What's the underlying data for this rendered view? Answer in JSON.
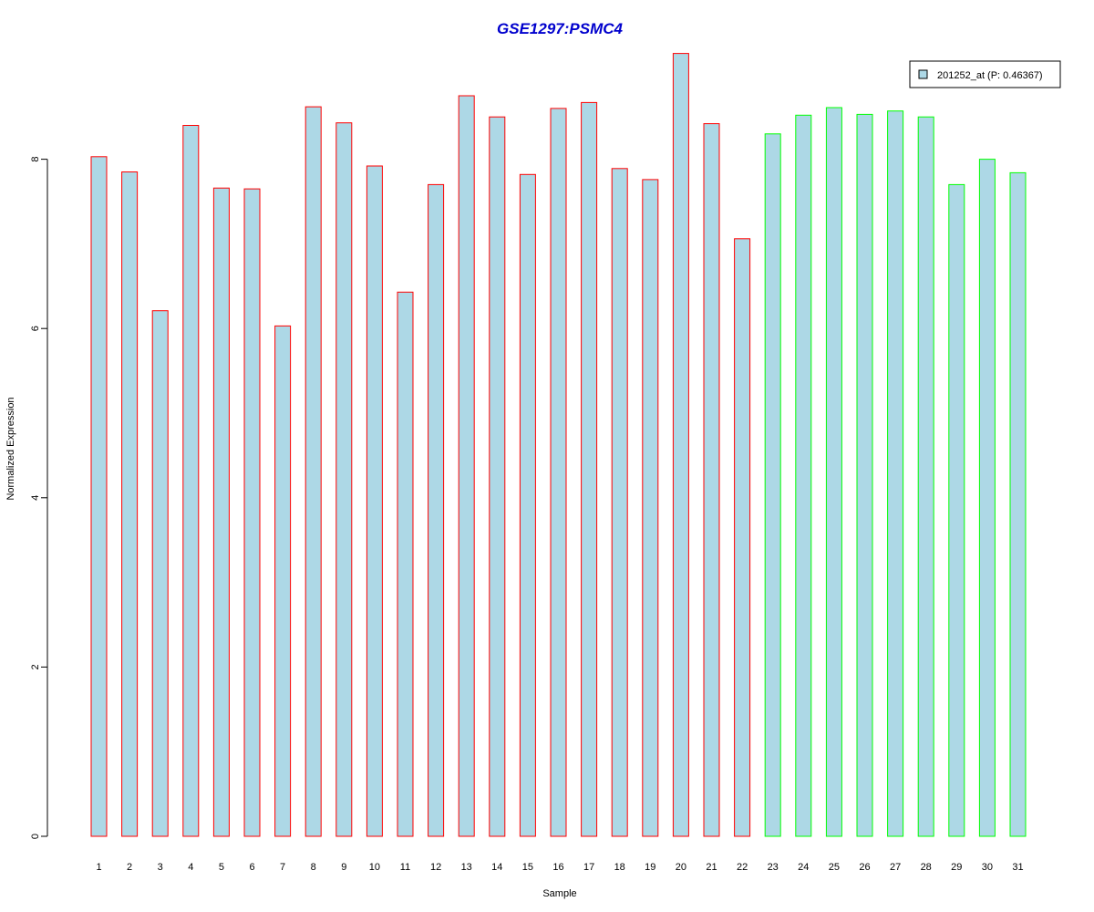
{
  "chart_data": {
    "type": "bar",
    "title": "GSE1297:PSMC4",
    "xlabel": "Sample",
    "ylabel": "Normalized Expression",
    "ylim": [
      0,
      9.3
    ],
    "yticks": [
      "0",
      "2",
      "4",
      "6",
      "8"
    ],
    "categories": [
      "1",
      "2",
      "3",
      "4",
      "5",
      "6",
      "7",
      "8",
      "9",
      "10",
      "11",
      "12",
      "13",
      "14",
      "15",
      "16",
      "17",
      "18",
      "19",
      "20",
      "21",
      "22",
      "23",
      "24",
      "25",
      "26",
      "27",
      "28",
      "29",
      "30",
      "31"
    ],
    "values": [
      8.03,
      7.85,
      6.21,
      8.4,
      7.66,
      7.65,
      6.03,
      8.62,
      8.43,
      7.92,
      6.43,
      7.7,
      8.75,
      8.5,
      7.82,
      8.6,
      8.67,
      7.89,
      7.76,
      9.25,
      8.42,
      7.06,
      8.3,
      8.52,
      8.61,
      8.53,
      8.57,
      8.5,
      7.7,
      8.0,
      7.84
    ],
    "groups": [
      "red",
      "red",
      "red",
      "red",
      "red",
      "red",
      "red",
      "red",
      "red",
      "red",
      "red",
      "red",
      "red",
      "red",
      "red",
      "red",
      "red",
      "red",
      "red",
      "red",
      "red",
      "red",
      "green",
      "green",
      "green",
      "green",
      "green",
      "green",
      "green",
      "green",
      "green"
    ],
    "legend": {
      "label": "201252_at (P: 0.46367)",
      "position": "top-right"
    },
    "colors": {
      "bar_fill": "#add8e6",
      "red": "#ff0000",
      "green": "#00ff00",
      "title": "#0000cd",
      "axis": "#000000"
    },
    "grid": false
  }
}
